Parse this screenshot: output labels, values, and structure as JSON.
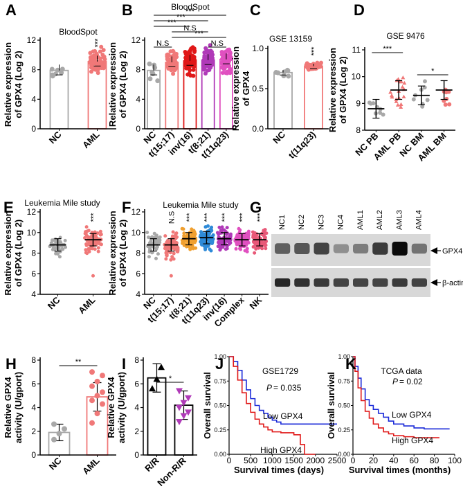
{
  "figure": {
    "colors": {
      "nc": "#a8a8a8",
      "aml": "#f07878",
      "red_line": "#e01818",
      "blue_line": "#1a2ad8",
      "purple": "#b03ab8",
      "orange": "#f0a030",
      "blue_dot": "#2e8ad8",
      "magenta": "#e050c0",
      "nk": "#e85878"
    }
  },
  "chart_data": [
    {
      "id": "A",
      "panel_label": "A",
      "type": "scatter-bar",
      "title": "BloodSpot",
      "ylabel": [
        "Relative expression",
        "of GPX4  (Log 2)"
      ],
      "ylim": [
        0,
        12
      ],
      "yticks": [
        0,
        4,
        8,
        12
      ],
      "categories": [
        "NC",
        "AML"
      ],
      "means": [
        7.9,
        9.1
      ],
      "bar_kind": "hollow",
      "annotations": [
        {
          "text": "***",
          "cat": 1
        }
      ]
    },
    {
      "id": "B",
      "panel_label": "B",
      "type": "scatter-bar",
      "title": "BloodSpot",
      "ylabel": [
        "Relative expression",
        "of GPX4  (Log 2)"
      ],
      "ylim": [
        0,
        12
      ],
      "yticks": [
        0,
        4,
        8,
        12
      ],
      "categories": [
        "NC",
        "t(15;17)",
        "inv(16)",
        "t(8;21)",
        "t(11q23)"
      ],
      "means": [
        7.9,
        9.0,
        9.2,
        9.3,
        9.4
      ],
      "bar_kind": "hollow",
      "brackets": [
        {
          "from": 0,
          "to": 4,
          "text": "***"
        },
        {
          "from": 0,
          "to": 3,
          "text": "***"
        },
        {
          "from": 0,
          "to": 2,
          "text": "***"
        },
        {
          "from": 1,
          "to": 3,
          "text": "N.S"
        },
        {
          "from": 1,
          "to": 4,
          "text": "***"
        },
        {
          "from": 0,
          "to": 1,
          "text": "N.S"
        },
        {
          "from": 3,
          "to": 4,
          "text": "N.S"
        }
      ]
    },
    {
      "id": "C",
      "panel_label": "C",
      "type": "scatter-bar",
      "title": "GSE 13159",
      "ylabel": [
        "Relative expression",
        "of GPX4"
      ],
      "ylim": [
        0,
        1
      ],
      "yticks": [
        0.0,
        0.5,
        1.0
      ],
      "categories": [
        "NC",
        "t(11q23)"
      ],
      "means": [
        0.7,
        0.78
      ],
      "bar_kind": "hollow",
      "annotations": [
        {
          "text": "***",
          "cat": 1
        }
      ]
    },
    {
      "id": "D",
      "panel_label": "D",
      "type": "scatter-errorbar",
      "title": "GSE 9476",
      "ylabel": [
        "Relative expression",
        "of GPX4 (Log 2)"
      ],
      "ylim": [
        8,
        11
      ],
      "yticks": [
        8,
        9,
        10,
        11
      ],
      "categories": [
        "NC PB",
        "AML PB",
        "NC BM",
        "AML BM"
      ],
      "means": [
        8.8,
        9.5,
        9.3,
        9.5
      ],
      "brackets": [
        {
          "from": 0,
          "to": 1,
          "text": "***"
        },
        {
          "from": 2,
          "to": 3,
          "text": "*"
        }
      ]
    },
    {
      "id": "E",
      "panel_label": "E",
      "type": "scatter-errorbar",
      "title": "Leukemia Mile study",
      "ylabel": [
        "Relative expression",
        "of GPX4  (Log 2)"
      ],
      "ylim": [
        4,
        12
      ],
      "yticks": [
        4,
        6,
        8,
        10,
        12
      ],
      "categories": [
        "NC",
        "AML"
      ],
      "means": [
        8.8,
        9.3
      ],
      "annotations": [
        {
          "text": "***",
          "cat": 1
        }
      ]
    },
    {
      "id": "F",
      "panel_label": "F",
      "type": "scatter-errorbar",
      "title": "Leukemia Mile study",
      "ylabel": [
        "Relative expression",
        "of GPX4  (Log 2)"
      ],
      "ylim": [
        4,
        12
      ],
      "yticks": [
        4,
        6,
        8,
        10,
        12
      ],
      "categories": [
        "NC",
        "t(15;17)",
        "t(8;21)",
        "t(11q23)",
        "inv(16)",
        "Complex",
        "NK"
      ],
      "means": [
        8.8,
        8.8,
        9.4,
        9.5,
        9.4,
        9.3,
        9.3
      ],
      "annotations": [
        {
          "text": "N.S",
          "cat": 1
        },
        {
          "text": "***",
          "cat": 2
        },
        {
          "text": "***",
          "cat": 3
        },
        {
          "text": "***",
          "cat": 4
        },
        {
          "text": "***",
          "cat": 5
        },
        {
          "text": "***",
          "cat": 6
        }
      ]
    },
    {
      "id": "H",
      "panel_label": "H",
      "type": "bar",
      "ylabel": [
        "Relative GPX4",
        "activity (U/gport)"
      ],
      "ylim": [
        0,
        8
      ],
      "yticks": [
        0,
        2,
        4,
        6,
        8
      ],
      "categories": [
        "NC",
        "AML"
      ],
      "values": [
        1.9,
        4.9
      ],
      "points": [
        [
          1.3,
          1.8,
          2.2,
          2.6
        ],
        [
          2.7,
          3.5,
          4.3,
          4.6,
          5.0,
          5.3,
          5.8,
          6.2,
          6.7,
          7.0
        ]
      ],
      "brackets": [
        {
          "from": 0,
          "to": 1,
          "text": "**"
        }
      ]
    },
    {
      "id": "I",
      "panel_label": "I",
      "type": "bar",
      "ylabel": [
        "Relative GPX4",
        "activity (U/gport)"
      ],
      "ylim": [
        0,
        8
      ],
      "yticks": [
        0,
        2,
        4,
        6,
        8
      ],
      "categories": [
        "R/R",
        "Non-R/R"
      ],
      "values": [
        6.5,
        4.2
      ],
      "points": [
        [
          5.6,
          6.4,
          7.4
        ],
        [
          2.8,
          3.3,
          3.6,
          4.0,
          4.4,
          4.8,
          5.4
        ]
      ],
      "brackets": [
        {
          "from": 0,
          "to": 1,
          "text": "*"
        }
      ]
    },
    {
      "id": "J",
      "panel_label": "J",
      "type": "survival",
      "title": "GSE1729",
      "pvalue": "= 0.035",
      "ylabel": "Overall survival",
      "xlabel": "Survival times (days)",
      "xlim": [
        0,
        2500
      ],
      "xticks": [
        0,
        500,
        1000,
        1500,
        2000,
        2500
      ],
      "ylim": [
        0,
        1
      ],
      "yticks": [
        0.0,
        0.25,
        0.5,
        0.75,
        1.0
      ],
      "series": [
        {
          "name": "Low GPX4",
          "x": [
            0,
            100,
            200,
            300,
            400,
            500,
            600,
            700,
            800,
            900,
            1000,
            1100,
            1200,
            1400,
            2500
          ],
          "y": [
            1.0,
            0.95,
            0.86,
            0.76,
            0.66,
            0.57,
            0.5,
            0.45,
            0.42,
            0.38,
            0.35,
            0.33,
            0.31,
            0.31,
            0.31
          ]
        },
        {
          "name": "High GPX4",
          "x": [
            0,
            100,
            200,
            300,
            400,
            500,
            600,
            700,
            800,
            900,
            1000,
            1200,
            1500,
            1650,
            1750,
            2000
          ],
          "y": [
            1.0,
            0.9,
            0.76,
            0.63,
            0.52,
            0.43,
            0.36,
            0.31,
            0.28,
            0.25,
            0.23,
            0.22,
            0.2,
            0.1,
            0.0,
            0.0
          ]
        }
      ]
    },
    {
      "id": "K",
      "panel_label": "K",
      "type": "survival",
      "title": "TCGA data",
      "pvalue": "= 0.02",
      "ylabel": "Overall survival",
      "xlabel": "Survival times (months)",
      "xlim": [
        0,
        100
      ],
      "xticks": [
        0,
        20,
        40,
        60,
        80,
        100
      ],
      "ylim": [
        0,
        1
      ],
      "yticks": [
        0.0,
        0.25,
        0.5,
        0.75,
        1.0
      ],
      "series": [
        {
          "name": "Low GPX4",
          "x": [
            0,
            2,
            5,
            8,
            12,
            16,
            20,
            25,
            30,
            35,
            40,
            50,
            60,
            70,
            80,
            95
          ],
          "y": [
            1.0,
            0.9,
            0.78,
            0.67,
            0.56,
            0.5,
            0.46,
            0.42,
            0.38,
            0.34,
            0.31,
            0.29,
            0.27,
            0.26,
            0.26,
            0.26
          ]
        },
        {
          "name": "High GPX4",
          "x": [
            0,
            2,
            5,
            8,
            12,
            16,
            20,
            25,
            30,
            35,
            40,
            50,
            60,
            70,
            85
          ],
          "y": [
            1.0,
            0.85,
            0.68,
            0.55,
            0.44,
            0.37,
            0.31,
            0.27,
            0.23,
            0.21,
            0.19,
            0.18,
            0.17,
            0.17,
            0.17
          ]
        }
      ]
    },
    {
      "id": "G",
      "panel_label": "G",
      "type": "western-blot",
      "lanes": [
        "NC1",
        "NC2",
        "NC3",
        "NC4",
        "AML1",
        "AML2",
        "AML3",
        "AML4"
      ],
      "bands": [
        "GPX4",
        "β-actin"
      ],
      "intensity": {
        "GPX4": [
          0.55,
          0.6,
          0.7,
          0.3,
          0.4,
          0.75,
          1.0,
          0.45
        ],
        "β-actin": [
          0.85,
          0.8,
          0.75,
          0.7,
          0.7,
          0.7,
          0.75,
          0.7
        ]
      }
    }
  ]
}
